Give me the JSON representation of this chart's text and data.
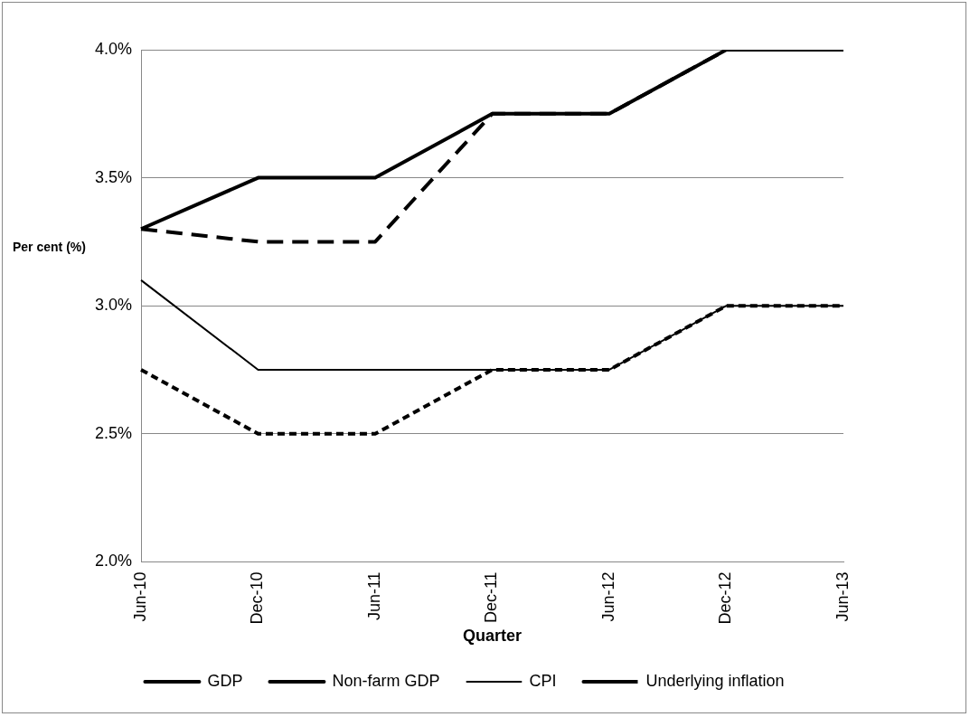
{
  "chart_data": {
    "type": "line",
    "xlabel": "Quarter",
    "ylabel": "Per cent (%)",
    "categories": [
      "Jun-10",
      "Dec-10",
      "Jun-11",
      "Dec-11",
      "Jun-12",
      "Dec-12",
      "Jun-13"
    ],
    "series": [
      {
        "name": "GDP",
        "color": "#000000",
        "line_style": "solid",
        "values": [
          3.3,
          3.5,
          3.5,
          3.75,
          3.75,
          4.0,
          4.0
        ]
      },
      {
        "name": "Non-farm GDP",
        "color": "#000000",
        "line_style": "dashed",
        "values": [
          3.3,
          3.25,
          3.25,
          3.75,
          3.75,
          4.0,
          4.0
        ]
      },
      {
        "name": "CPI",
        "color": "#000000",
        "line_style": "solid",
        "values": [
          3.1,
          2.75,
          2.75,
          2.75,
          2.75,
          3.0,
          3.0
        ]
      },
      {
        "name": "Underlying inflation",
        "color": "#000000",
        "line_style": "dotted",
        "values": [
          2.75,
          2.5,
          2.5,
          2.75,
          2.75,
          3.0,
          3.0
        ]
      }
    ],
    "ylim": [
      2.0,
      4.0
    ],
    "yticks": [
      {
        "value": 2.0,
        "label": "2.0%"
      },
      {
        "value": 2.5,
        "label": "2.5%"
      },
      {
        "value": 3.0,
        "label": "3.0%"
      },
      {
        "value": 3.5,
        "label": "3.5%"
      },
      {
        "value": 4.0,
        "label": "4.0%"
      }
    ],
    "grid": "y",
    "legend": "bottom",
    "marker": "none"
  }
}
